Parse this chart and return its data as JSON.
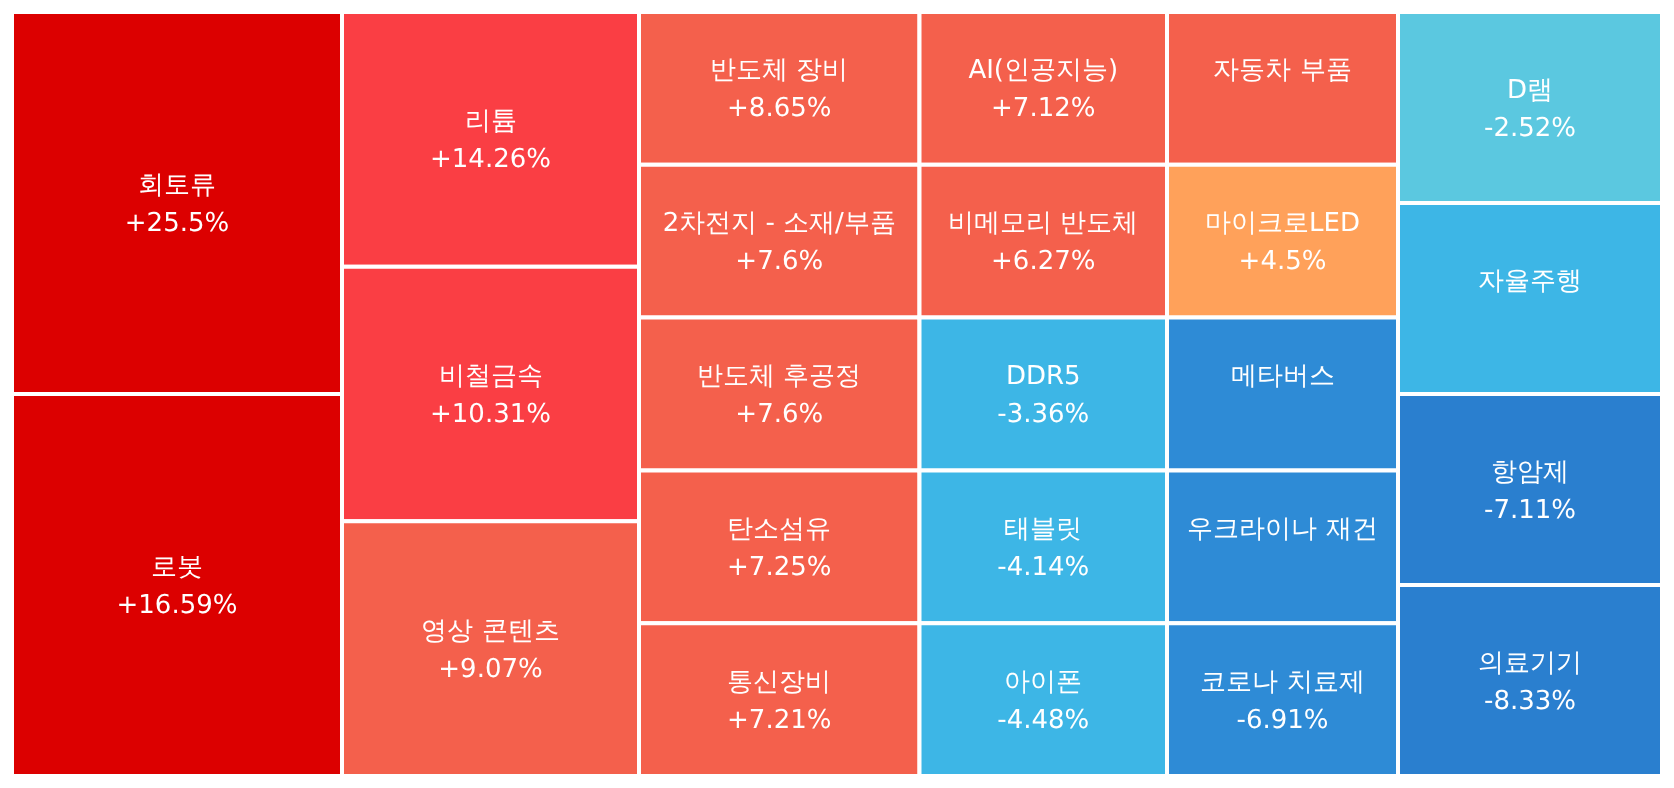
{
  "chart_data": {
    "type": "other",
    "categories": [
      "회토류",
      "로봇",
      "리튬",
      "비철금속",
      "영상 콘텐츠",
      "반도체 장비",
      "2차전지 - 소재/부품",
      "반도체 후공정",
      "탄소섬유",
      "통신장비",
      "AI(인공지능)",
      "비메모리 반도체",
      "DDR5",
      "태블릿",
      "아이폰",
      "자동차 부품",
      "마이크로LED",
      "메타버스",
      "우크라이나 재건",
      "코로나 치료제",
      "D램",
      "자율주행",
      "항암제",
      "의료기기"
    ],
    "values": [
      25.5,
      16.59,
      14.26,
      10.31,
      9.07,
      8.65,
      7.6,
      7.6,
      7.25,
      7.21,
      7.12,
      6.27,
      -3.36,
      -4.14,
      -4.48,
      null,
      4.5,
      null,
      null,
      -6.91,
      -2.52,
      null,
      -7.11,
      -8.33
    ],
    "value_labels": [
      "+25.5%",
      "+16.59%",
      "+14.26%",
      "+10.31%",
      "+9.07%",
      "+8.65%",
      "+7.6%",
      "+7.6%",
      "+7.25%",
      "+7.21%",
      "+7.12%",
      "+6.27%",
      "-3.36%",
      "-4.14%",
      "-4.48%",
      null,
      "+4.5%",
      null,
      null,
      "-6.91%",
      "-2.52%",
      null,
      "-7.11%",
      "-8.33%"
    ],
    "colors": [
      "#dc0000",
      "#dc0000",
      "#fa3e44",
      "#fa3e44",
      "#f4604c",
      "#f4604c",
      "#f4604c",
      "#f4604c",
      "#f4604c",
      "#f4604c",
      "#f4604c",
      "#f4604c",
      "#3db6e6",
      "#3db6e6",
      "#3db6e6",
      "#f4604c",
      "#ffa15a",
      "#2e8bd6",
      "#2e8bd6",
      "#2e8bd6",
      "#5bc8e0",
      "#3db6e6",
      "#2a7fcf",
      "#2a7fcf"
    ]
  }
}
